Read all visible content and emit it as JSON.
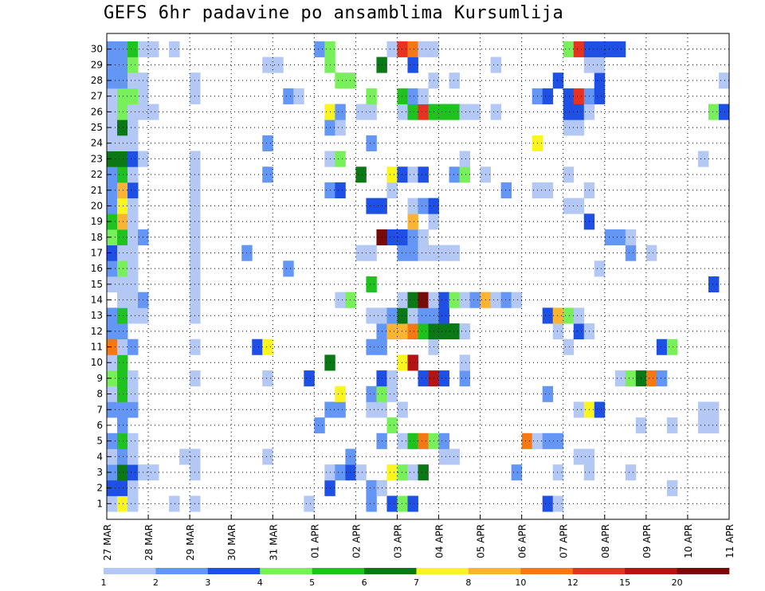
{
  "title": "GEFS 6hr padavine po ansamblima Kursumlija",
  "chart_data": {
    "type": "heatmap",
    "title": "GEFS 6hr padavine po ansamblima Kursumlija",
    "y_label": "",
    "x_label": "",
    "members": [
      1,
      2,
      3,
      4,
      5,
      6,
      7,
      8,
      9,
      10,
      11,
      12,
      13,
      14,
      15,
      16,
      17,
      18,
      19,
      20,
      21,
      22,
      23,
      24,
      25,
      26,
      27,
      28,
      29,
      30
    ],
    "x_tick_labels": [
      "27 MAR",
      "28 MAR",
      "29 MAR",
      "30 MAR",
      "31 MAR",
      "01 APR",
      "02 APR",
      "03 APR",
      "04 APR",
      "05 APR",
      "06 APR",
      "07 APR",
      "08 APR",
      "09 APR",
      "10 APR",
      "11 APR"
    ],
    "steps_per_day": 4,
    "first_step": 1,
    "grid": "dotted",
    "levels": [
      "1",
      "2",
      "3",
      "4",
      "5",
      "6",
      "7",
      "8",
      "10",
      "12",
      "15",
      "20"
    ],
    "colors": [
      "#b4c8f5",
      "#6496f5",
      "#1e50e6",
      "#78f05a",
      "#1ec31e",
      "#0a7814",
      "#faf51e",
      "#fab432",
      "#f57814",
      "#e6321e",
      "#b41414",
      "#780a0a"
    ],
    "cells": [
      [
        1,
        1,
        1
      ],
      [
        1,
        2,
        7
      ],
      [
        1,
        3,
        1
      ],
      [
        1,
        7,
        1
      ],
      [
        1,
        9,
        1
      ],
      [
        1,
        20,
        1
      ],
      [
        1,
        26,
        2
      ],
      [
        1,
        28,
        3
      ],
      [
        1,
        29,
        4
      ],
      [
        1,
        30,
        3
      ],
      [
        1,
        43,
        3
      ],
      [
        1,
        44,
        1
      ],
      [
        2,
        1,
        3
      ],
      [
        2,
        2,
        3
      ],
      [
        2,
        3,
        1
      ],
      [
        2,
        22,
        3
      ],
      [
        2,
        26,
        2
      ],
      [
        2,
        27,
        1
      ],
      [
        2,
        55,
        1
      ],
      [
        3,
        1,
        2
      ],
      [
        3,
        2,
        6
      ],
      [
        3,
        3,
        3
      ],
      [
        3,
        4,
        1
      ],
      [
        3,
        5,
        1
      ],
      [
        3,
        9,
        1
      ],
      [
        3,
        22,
        1
      ],
      [
        3,
        23,
        2
      ],
      [
        3,
        24,
        3
      ],
      [
        3,
        25,
        1
      ],
      [
        3,
        28,
        7
      ],
      [
        3,
        29,
        4
      ],
      [
        3,
        30,
        1
      ],
      [
        3,
        31,
        6
      ],
      [
        3,
        40,
        2
      ],
      [
        3,
        44,
        1
      ],
      [
        3,
        47,
        1
      ],
      [
        3,
        51,
        1
      ],
      [
        4,
        1,
        1
      ],
      [
        4,
        2,
        2
      ],
      [
        4,
        3,
        1
      ],
      [
        4,
        8,
        1
      ],
      [
        4,
        9,
        1
      ],
      [
        4,
        16,
        1
      ],
      [
        4,
        24,
        2
      ],
      [
        4,
        33,
        1
      ],
      [
        4,
        34,
        1
      ],
      [
        4,
        46,
        1
      ],
      [
        4,
        47,
        1
      ],
      [
        5,
        1,
        2
      ],
      [
        5,
        2,
        5
      ],
      [
        5,
        3,
        1
      ],
      [
        5,
        27,
        2
      ],
      [
        5,
        29,
        1
      ],
      [
        5,
        30,
        5
      ],
      [
        5,
        31,
        9
      ],
      [
        5,
        32,
        4
      ],
      [
        5,
        33,
        2
      ],
      [
        5,
        41,
        9
      ],
      [
        5,
        42,
        1
      ],
      [
        5,
        43,
        2
      ],
      [
        5,
        44,
        2
      ],
      [
        6,
        2,
        2
      ],
      [
        6,
        21,
        2
      ],
      [
        6,
        28,
        4
      ],
      [
        6,
        52,
        1
      ],
      [
        6,
        55,
        1
      ],
      [
        6,
        58,
        1
      ],
      [
        6,
        59,
        1
      ],
      [
        7,
        1,
        2
      ],
      [
        7,
        2,
        2
      ],
      [
        7,
        3,
        2
      ],
      [
        7,
        22,
        2
      ],
      [
        7,
        23,
        2
      ],
      [
        7,
        26,
        1
      ],
      [
        7,
        27,
        1
      ],
      [
        7,
        29,
        1
      ],
      [
        7,
        46,
        1
      ],
      [
        7,
        47,
        7
      ],
      [
        7,
        48,
        3
      ],
      [
        7,
        58,
        1
      ],
      [
        7,
        59,
        1
      ],
      [
        8,
        1,
        1
      ],
      [
        8,
        2,
        5
      ],
      [
        8,
        3,
        1
      ],
      [
        8,
        23,
        7
      ],
      [
        8,
        26,
        2
      ],
      [
        8,
        27,
        4
      ],
      [
        8,
        28,
        1
      ],
      [
        8,
        43,
        2
      ],
      [
        9,
        1,
        4
      ],
      [
        9,
        2,
        5
      ],
      [
        9,
        3,
        1
      ],
      [
        9,
        9,
        1
      ],
      [
        9,
        16,
        1
      ],
      [
        9,
        20,
        3
      ],
      [
        9,
        27,
        3
      ],
      [
        9,
        28,
        1
      ],
      [
        9,
        31,
        3
      ],
      [
        9,
        32,
        11
      ],
      [
        9,
        33,
        3
      ],
      [
        9,
        35,
        2
      ],
      [
        9,
        50,
        1
      ],
      [
        9,
        51,
        4
      ],
      [
        9,
        52,
        6
      ],
      [
        9,
        53,
        9
      ],
      [
        9,
        54,
        2
      ],
      [
        10,
        1,
        1
      ],
      [
        10,
        2,
        5
      ],
      [
        10,
        22,
        6
      ],
      [
        10,
        29,
        7
      ],
      [
        10,
        30,
        11
      ],
      [
        10,
        35,
        1
      ],
      [
        11,
        1,
        9
      ],
      [
        11,
        2,
        1
      ],
      [
        11,
        3,
        2
      ],
      [
        11,
        9,
        1
      ],
      [
        11,
        15,
        3
      ],
      [
        11,
        16,
        7
      ],
      [
        11,
        26,
        2
      ],
      [
        11,
        27,
        2
      ],
      [
        11,
        32,
        1
      ],
      [
        11,
        45,
        1
      ],
      [
        11,
        54,
        3
      ],
      [
        11,
        55,
        4
      ],
      [
        12,
        1,
        2
      ],
      [
        12,
        2,
        2
      ],
      [
        12,
        27,
        2
      ],
      [
        12,
        28,
        8
      ],
      [
        12,
        29,
        8
      ],
      [
        12,
        30,
        9
      ],
      [
        12,
        31,
        5
      ],
      [
        12,
        32,
        6
      ],
      [
        12,
        33,
        6
      ],
      [
        12,
        34,
        6
      ],
      [
        12,
        35,
        1
      ],
      [
        12,
        44,
        1
      ],
      [
        12,
        46,
        3
      ],
      [
        12,
        47,
        1
      ],
      [
        13,
        1,
        2
      ],
      [
        13,
        2,
        5
      ],
      [
        13,
        3,
        1
      ],
      [
        13,
        4,
        1
      ],
      [
        13,
        9,
        1
      ],
      [
        13,
        26,
        1
      ],
      [
        13,
        27,
        1
      ],
      [
        13,
        28,
        2
      ],
      [
        13,
        29,
        6
      ],
      [
        13,
        30,
        1
      ],
      [
        13,
        31,
        2
      ],
      [
        13,
        32,
        2
      ],
      [
        13,
        33,
        3
      ],
      [
        13,
        43,
        3
      ],
      [
        13,
        44,
        8
      ],
      [
        13,
        45,
        4
      ],
      [
        13,
        46,
        1
      ],
      [
        14,
        2,
        1
      ],
      [
        14,
        3,
        1
      ],
      [
        14,
        4,
        2
      ],
      [
        14,
        9,
        1
      ],
      [
        14,
        23,
        1
      ],
      [
        14,
        24,
        4
      ],
      [
        14,
        29,
        1
      ],
      [
        14,
        30,
        6
      ],
      [
        14,
        31,
        12
      ],
      [
        14,
        32,
        1
      ],
      [
        14,
        33,
        3
      ],
      [
        14,
        34,
        4
      ],
      [
        14,
        35,
        1
      ],
      [
        14,
        36,
        2
      ],
      [
        14,
        37,
        8
      ],
      [
        14,
        38,
        1
      ],
      [
        14,
        39,
        2
      ],
      [
        14,
        40,
        1
      ],
      [
        15,
        1,
        1
      ],
      [
        15,
        2,
        1
      ],
      [
        15,
        3,
        1
      ],
      [
        15,
        9,
        1
      ],
      [
        15,
        26,
        5
      ],
      [
        15,
        59,
        3
      ],
      [
        16,
        1,
        2
      ],
      [
        16,
        2,
        4
      ],
      [
        16,
        3,
        1
      ],
      [
        16,
        9,
        1
      ],
      [
        16,
        18,
        2
      ],
      [
        16,
        48,
        1
      ],
      [
        17,
        1,
        3
      ],
      [
        17,
        2,
        1
      ],
      [
        17,
        3,
        1
      ],
      [
        17,
        9,
        1
      ],
      [
        17,
        14,
        2
      ],
      [
        17,
        25,
        1
      ],
      [
        17,
        26,
        1
      ],
      [
        17,
        29,
        2
      ],
      [
        17,
        30,
        2
      ],
      [
        17,
        31,
        1
      ],
      [
        17,
        32,
        1
      ],
      [
        17,
        33,
        1
      ],
      [
        17,
        34,
        1
      ],
      [
        17,
        51,
        2
      ],
      [
        17,
        53,
        1
      ],
      [
        18,
        1,
        4
      ],
      [
        18,
        2,
        5
      ],
      [
        18,
        3,
        1
      ],
      [
        18,
        4,
        2
      ],
      [
        18,
        9,
        1
      ],
      [
        18,
        28,
        3
      ],
      [
        18,
        27,
        12
      ],
      [
        18,
        29,
        3
      ],
      [
        18,
        30,
        2
      ],
      [
        18,
        31,
        1
      ],
      [
        18,
        49,
        2
      ],
      [
        18,
        50,
        2
      ],
      [
        18,
        51,
        1
      ],
      [
        19,
        1,
        5
      ],
      [
        19,
        2,
        8
      ],
      [
        19,
        3,
        1
      ],
      [
        19,
        9,
        1
      ],
      [
        19,
        30,
        8
      ],
      [
        19,
        32,
        1
      ],
      [
        19,
        47,
        3
      ],
      [
        20,
        1,
        2
      ],
      [
        20,
        2,
        7
      ],
      [
        20,
        3,
        1
      ],
      [
        20,
        9,
        1
      ],
      [
        20,
        26,
        3
      ],
      [
        20,
        27,
        3
      ],
      [
        20,
        30,
        1
      ],
      [
        20,
        31,
        2
      ],
      [
        20,
        32,
        3
      ],
      [
        20,
        45,
        1
      ],
      [
        20,
        46,
        1
      ],
      [
        21,
        1,
        2
      ],
      [
        21,
        2,
        8
      ],
      [
        21,
        3,
        3
      ],
      [
        21,
        9,
        1
      ],
      [
        21,
        22,
        2
      ],
      [
        21,
        23,
        3
      ],
      [
        21,
        28,
        1
      ],
      [
        21,
        39,
        2
      ],
      [
        21,
        42,
        1
      ],
      [
        21,
        43,
        1
      ],
      [
        21,
        47,
        1
      ],
      [
        22,
        1,
        2
      ],
      [
        22,
        2,
        5
      ],
      [
        22,
        3,
        1
      ],
      [
        22,
        9,
        1
      ],
      [
        22,
        16,
        2
      ],
      [
        22,
        25,
        6
      ],
      [
        22,
        28,
        7
      ],
      [
        22,
        29,
        3
      ],
      [
        22,
        30,
        1
      ],
      [
        22,
        31,
        3
      ],
      [
        22,
        34,
        2
      ],
      [
        22,
        35,
        4
      ],
      [
        22,
        37,
        1
      ],
      [
        22,
        45,
        1
      ],
      [
        23,
        1,
        6
      ],
      [
        23,
        2,
        6
      ],
      [
        23,
        3,
        3
      ],
      [
        23,
        4,
        1
      ],
      [
        23,
        9,
        1
      ],
      [
        23,
        22,
        1
      ],
      [
        23,
        23,
        4
      ],
      [
        23,
        35,
        1
      ],
      [
        23,
        58,
        1
      ],
      [
        24,
        1,
        1
      ],
      [
        24,
        2,
        1
      ],
      [
        24,
        3,
        1
      ],
      [
        24,
        16,
        2
      ],
      [
        24,
        26,
        2
      ],
      [
        24,
        42,
        7
      ],
      [
        25,
        1,
        1
      ],
      [
        25,
        2,
        6
      ],
      [
        25,
        3,
        1
      ],
      [
        25,
        22,
        2
      ],
      [
        25,
        23,
        1
      ],
      [
        25,
        45,
        1
      ],
      [
        25,
        46,
        1
      ],
      [
        26,
        1,
        1
      ],
      [
        26,
        2,
        4
      ],
      [
        26,
        3,
        1
      ],
      [
        26,
        4,
        1
      ],
      [
        26,
        5,
        1
      ],
      [
        26,
        22,
        7
      ],
      [
        26,
        23,
        2
      ],
      [
        26,
        25,
        1
      ],
      [
        26,
        26,
        1
      ],
      [
        26,
        29,
        1
      ],
      [
        26,
        30,
        5
      ],
      [
        26,
        31,
        10
      ],
      [
        26,
        32,
        5
      ],
      [
        26,
        33,
        5
      ],
      [
        26,
        34,
        5
      ],
      [
        26,
        35,
        1
      ],
      [
        26,
        36,
        1
      ],
      [
        26,
        38,
        1
      ],
      [
        26,
        45,
        3
      ],
      [
        26,
        46,
        3
      ],
      [
        26,
        47,
        1
      ],
      [
        26,
        59,
        4
      ],
      [
        26,
        60,
        3
      ],
      [
        27,
        1,
        1
      ],
      [
        27,
        2,
        4
      ],
      [
        27,
        3,
        4
      ],
      [
        27,
        4,
        1
      ],
      [
        27,
        9,
        1
      ],
      [
        27,
        18,
        2
      ],
      [
        27,
        19,
        1
      ],
      [
        27,
        26,
        4
      ],
      [
        27,
        29,
        5
      ],
      [
        27,
        30,
        2
      ],
      [
        27,
        31,
        1
      ],
      [
        27,
        42,
        2
      ],
      [
        27,
        43,
        3
      ],
      [
        27,
        45,
        3
      ],
      [
        27,
        46,
        10
      ],
      [
        27,
        47,
        2
      ],
      [
        27,
        48,
        3
      ],
      [
        28,
        1,
        2
      ],
      [
        28,
        2,
        2
      ],
      [
        28,
        3,
        1
      ],
      [
        28,
        4,
        1
      ],
      [
        28,
        9,
        1
      ],
      [
        28,
        23,
        4
      ],
      [
        28,
        24,
        4
      ],
      [
        28,
        32,
        1
      ],
      [
        28,
        34,
        1
      ],
      [
        28,
        44,
        3
      ],
      [
        28,
        48,
        3
      ],
      [
        28,
        60,
        1
      ],
      [
        29,
        1,
        2
      ],
      [
        29,
        2,
        2
      ],
      [
        29,
        3,
        4
      ],
      [
        29,
        16,
        1
      ],
      [
        29,
        17,
        1
      ],
      [
        29,
        22,
        4
      ],
      [
        29,
        27,
        6
      ],
      [
        29,
        30,
        3
      ],
      [
        29,
        38,
        1
      ],
      [
        29,
        47,
        1
      ],
      [
        29,
        48,
        1
      ],
      [
        30,
        1,
        2
      ],
      [
        30,
        2,
        2
      ],
      [
        30,
        3,
        5
      ],
      [
        30,
        4,
        1
      ],
      [
        30,
        5,
        1
      ],
      [
        30,
        7,
        1
      ],
      [
        30,
        21,
        2
      ],
      [
        30,
        22,
        4
      ],
      [
        30,
        28,
        1
      ],
      [
        30,
        29,
        10
      ],
      [
        30,
        30,
        9
      ],
      [
        30,
        31,
        1
      ],
      [
        30,
        32,
        1
      ],
      [
        30,
        45,
        4
      ],
      [
        30,
        46,
        10
      ],
      [
        30,
        47,
        3
      ],
      [
        30,
        48,
        3
      ],
      [
        30,
        49,
        3
      ],
      [
        30,
        50,
        3
      ]
    ]
  }
}
